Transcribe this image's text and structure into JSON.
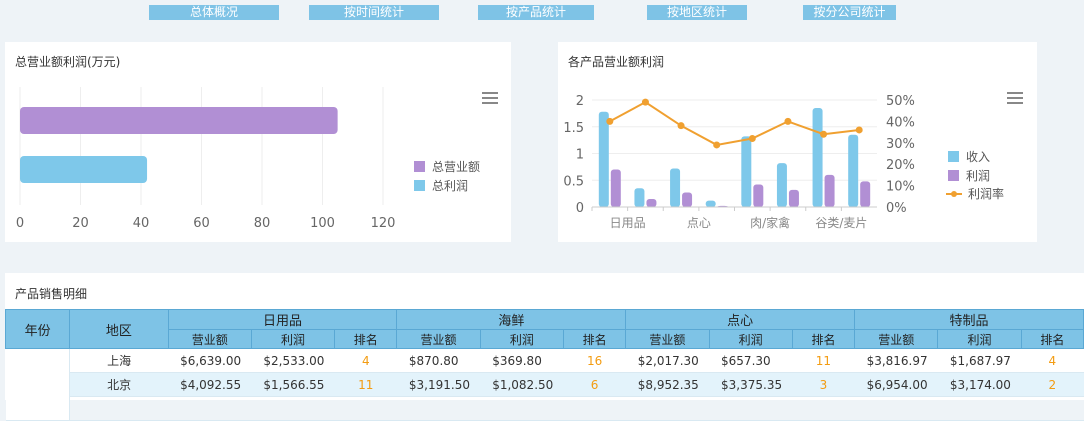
{
  "tabs": [
    "总体概况",
    "按时间统计",
    "按产品统计",
    "按地区统计",
    "按分公司统计"
  ],
  "panel1": {
    "title": "总营业额利润(万元)",
    "icons": {
      "menu": "hamburger-menu-icon"
    }
  },
  "panel2": {
    "title": "各产品营业额利润",
    "icons": {
      "menu": "hamburger-menu-icon"
    }
  },
  "colors": {
    "purple": "#b18fd4",
    "blue": "#7ec8ea",
    "orange": "#f0a030",
    "header": "#7ec3e6"
  },
  "chart_data": [
    {
      "type": "bar",
      "orientation": "horizontal",
      "title": "总营业额利润(万元)",
      "series": [
        {
          "name": "总营业额",
          "values": [
            105
          ],
          "color": "#b18fd4"
        },
        {
          "name": "总利润",
          "values": [
            42
          ],
          "color": "#7ec8ea"
        }
      ],
      "xticks": [
        "0",
        "20",
        "40",
        "60",
        "80",
        "100",
        "120"
      ],
      "xlim": [
        0,
        120
      ],
      "legend": "right",
      "grid": true
    },
    {
      "type": "bar",
      "title": "各产品营业额利润",
      "categories": [
        "日用品",
        "",
        "点心",
        "",
        "肉/家禽",
        "",
        "谷类/麦片",
        ""
      ],
      "series": [
        {
          "name": "收入",
          "values": [
            1.78,
            0.35,
            0.72,
            0.12,
            1.32,
            0.82,
            1.85,
            1.35
          ],
          "color": "#7ec8ea"
        },
        {
          "name": "利润",
          "values": [
            0.7,
            0.15,
            0.27,
            0.02,
            0.42,
            0.32,
            0.6,
            0.48
          ],
          "color": "#b18fd4"
        },
        {
          "name": "利润率",
          "type": "line",
          "axis": "right",
          "values": [
            0.4,
            0.49,
            0.38,
            0.29,
            0.32,
            0.4,
            0.34,
            0.36
          ],
          "color": "#f0a030"
        }
      ],
      "yticks_left": [
        "0",
        "0.5",
        "1",
        "1.5",
        "2"
      ],
      "ylim_left": [
        0,
        2
      ],
      "yticks_right": [
        "0%",
        "10%",
        "20%",
        "30%",
        "40%",
        "50%"
      ],
      "ylim_right": [
        0,
        0.5
      ],
      "legend": "right",
      "grid": true
    }
  ],
  "table": {
    "title": "产品销售明细",
    "year_header": "年份",
    "region_header": "地区",
    "groups": [
      "日用品",
      "海鲜",
      "点心",
      "特制品"
    ],
    "sub_headers": [
      "营业额",
      "利润",
      "排名"
    ],
    "rows": [
      {
        "region": "上海",
        "cells": [
          "$6,639.00",
          "$2,533.00",
          "4",
          "$870.80",
          "$369.80",
          "16",
          "$2,017.30",
          "$657.30",
          "11",
          "$3,816.97",
          "$1,687.97",
          "4"
        ]
      },
      {
        "region": "北京",
        "cells": [
          "$4,092.55",
          "$1,566.55",
          "11",
          "$3,191.50",
          "$1,082.50",
          "6",
          "$8,952.35",
          "$3,375.35",
          "3",
          "$6,954.00",
          "$3,174.00",
          "2"
        ]
      }
    ]
  }
}
